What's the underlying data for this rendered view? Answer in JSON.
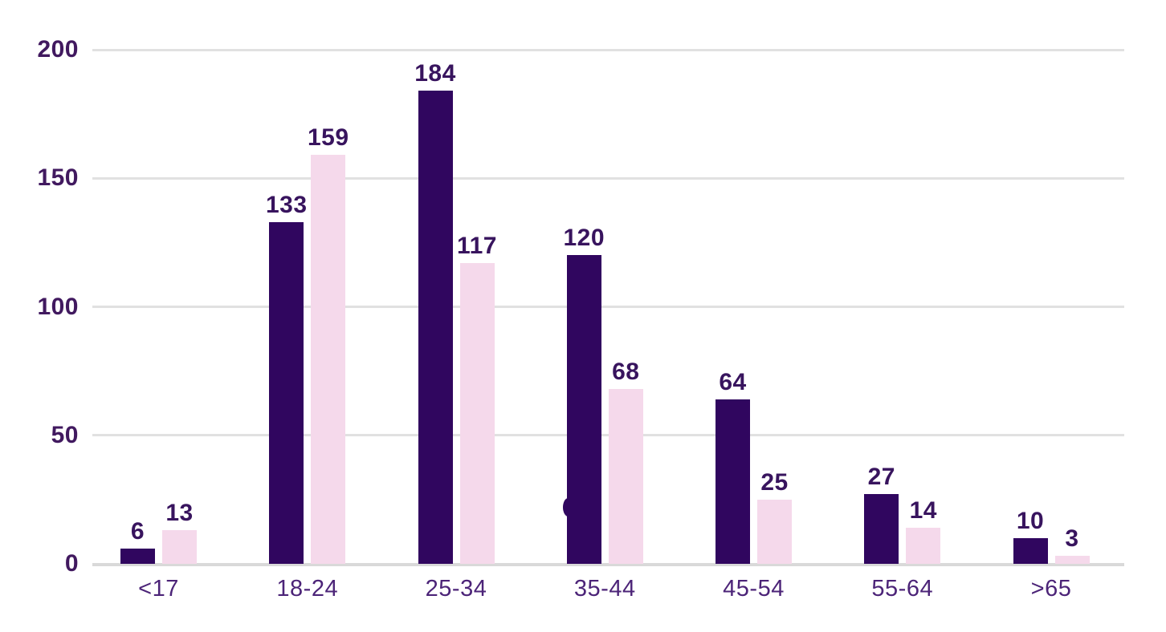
{
  "chart_data": {
    "type": "bar",
    "title": "",
    "xlabel": "",
    "ylabel": "",
    "categories": [
      "<17",
      "18-24",
      "25-34",
      "35-44",
      "45-54",
      "55-64",
      ">65"
    ],
    "series": [
      {
        "name": "series-1",
        "color": "#30065f",
        "values": [
          6,
          133,
          184,
          120,
          64,
          27,
          10
        ]
      },
      {
        "name": "series-2",
        "color": "#f5d9eb",
        "values": [
          13,
          159,
          117,
          68,
          25,
          14,
          3
        ]
      }
    ],
    "y_ticks": [
      0,
      50,
      100,
      150,
      200
    ],
    "ylim": [
      0,
      200
    ],
    "grid": "horizontal",
    "legend": "none",
    "value_labels": "above-bars"
  },
  "colors": {
    "value_label": "#38145e",
    "y_tick_label": "#41195f",
    "x_tick_label": "#4c2478",
    "gridline": "#e1e1e1",
    "baseline": "#d9d9d9",
    "background": "#ffffff"
  }
}
